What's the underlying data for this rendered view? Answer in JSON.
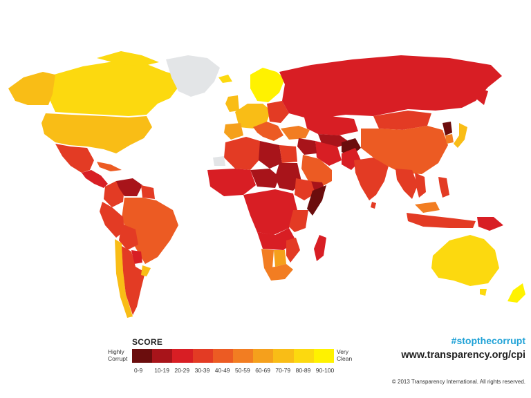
{
  "legend": {
    "title": "SCORE",
    "low_label": [
      "Highly",
      "Corrupt"
    ],
    "high_label": [
      "Very",
      "Clean"
    ],
    "ranges": [
      "0-9",
      "10-19",
      "20-29",
      "30-39",
      "40-49",
      "50-59",
      "60-69",
      "70-79",
      "80-89",
      "90-100"
    ],
    "colors": [
      "#6b0d0d",
      "#a8141a",
      "#d81e24",
      "#e33b24",
      "#ec5b23",
      "#f27d22",
      "#f5a01c",
      "#f9bd16",
      "#fcd90f",
      "#fff200"
    ]
  },
  "branding": {
    "hashtag": "#stopthecorrupt",
    "website": "www.transparency.org/cpi",
    "copyright": "© 2013 Transparency International. All rights reserved."
  },
  "map": {
    "type": "choropleth",
    "no_data_color": "#e3e5e7",
    "regions": [
      {
        "name": "Canada",
        "range": "80-89"
      },
      {
        "name": "Alaska",
        "range": "70-79"
      },
      {
        "name": "Greenland",
        "range": "no data"
      },
      {
        "name": "United States",
        "range": "70-79"
      },
      {
        "name": "Mexico",
        "range": "30-39"
      },
      {
        "name": "Central America",
        "range": "20-29"
      },
      {
        "name": "Venezuela",
        "range": "10-19"
      },
      {
        "name": "Colombia",
        "range": "30-39"
      },
      {
        "name": "Brazil",
        "range": "40-49"
      },
      {
        "name": "Peru",
        "range": "30-39"
      },
      {
        "name": "Bolivia",
        "range": "30-39"
      },
      {
        "name": "Chile",
        "range": "70-79"
      },
      {
        "name": "Argentina",
        "range": "30-39"
      },
      {
        "name": "Uruguay",
        "range": "70-79"
      },
      {
        "name": "Scandinavia",
        "range": "90-100"
      },
      {
        "name": "Western Europe",
        "range": "70-79"
      },
      {
        "name": "Southern Europe",
        "range": "40-49"
      },
      {
        "name": "Russia",
        "range": "20-29"
      },
      {
        "name": "Central Asia",
        "range": "20-29"
      },
      {
        "name": "Afghanistan",
        "range": "0-9"
      },
      {
        "name": "Iran",
        "range": "20-29"
      },
      {
        "name": "Arabia",
        "range": "40-49"
      },
      {
        "name": "North Africa",
        "range": "30-39"
      },
      {
        "name": "Libya",
        "range": "10-19"
      },
      {
        "name": "Sudan",
        "range": "10-19"
      },
      {
        "name": "Somalia",
        "range": "0-9"
      },
      {
        "name": "Central Africa",
        "range": "20-29"
      },
      {
        "name": "Southern Africa",
        "range": "40-49"
      },
      {
        "name": "Botswana",
        "range": "60-69"
      },
      {
        "name": "Madagascar",
        "range": "20-29"
      },
      {
        "name": "India",
        "range": "30-39"
      },
      {
        "name": "China",
        "range": "40-49"
      },
      {
        "name": "Mongolia",
        "range": "30-39"
      },
      {
        "name": "North Korea",
        "range": "0-9"
      },
      {
        "name": "Japan",
        "range": "70-79"
      },
      {
        "name": "Southeast Asia",
        "range": "30-39"
      },
      {
        "name": "Indonesia",
        "range": "30-39"
      },
      {
        "name": "Papua New Guinea",
        "range": "20-29"
      },
      {
        "name": "Australia",
        "range": "80-89"
      },
      {
        "name": "New Zealand",
        "range": "90-100"
      }
    ]
  }
}
